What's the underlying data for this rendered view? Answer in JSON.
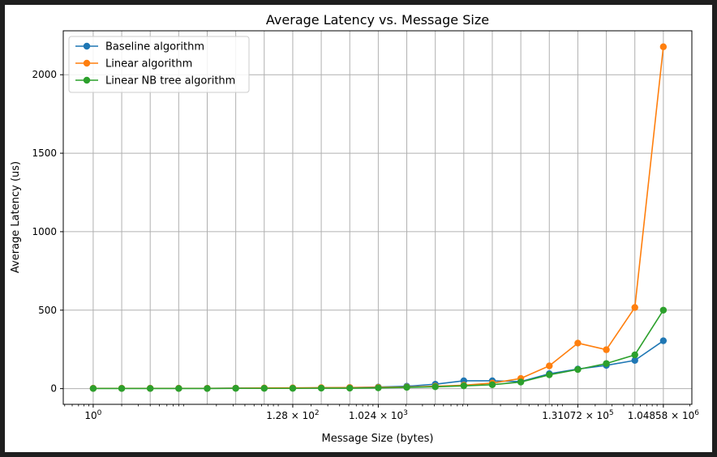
{
  "chart_data": {
    "type": "line",
    "title": "Average Latency vs. Message Size",
    "xlabel": "Message Size (bytes)",
    "ylabel": "Average Latency (us)",
    "x_scale": "log2",
    "x": [
      1,
      2,
      4,
      8,
      16,
      32,
      64,
      128,
      256,
      512,
      1024,
      2048,
      4096,
      8192,
      16384,
      32768,
      65536,
      131072,
      262144,
      524288,
      1048576
    ],
    "x_ticks": [
      {
        "value": 1,
        "label": "10^0"
      },
      {
        "value": 128,
        "label": "1.28 × 10^2"
      },
      {
        "value": 1024,
        "label": "1.024 × 10^3"
      },
      {
        "value": 131072,
        "label": "1.31072 × 10^5"
      },
      {
        "value": 1048576,
        "label": "1.04858 × 10^6"
      }
    ],
    "y_ticks": [
      0,
      500,
      1000,
      1500,
      2000
    ],
    "ylim": [
      -100,
      2280
    ],
    "grid": true,
    "legend_position": "top-left",
    "series": [
      {
        "name": "Baseline algorithm",
        "color": "#1f77b4",
        "values": [
          2,
          2,
          2,
          2,
          2,
          3,
          3,
          4,
          5,
          7,
          10,
          15,
          28,
          50,
          50,
          45,
          95,
          125,
          148,
          180,
          305
        ]
      },
      {
        "name": "Linear algorithm",
        "color": "#ff7f0e",
        "values": [
          2,
          2,
          2,
          2,
          2,
          3,
          4,
          5,
          6,
          7,
          8,
          10,
          15,
          22,
          35,
          65,
          145,
          290,
          248,
          517,
          2178
        ]
      },
      {
        "name": "Linear NB tree algorithm",
        "color": "#2ca02c",
        "values": [
          1,
          1,
          1,
          1,
          1,
          2,
          2,
          2,
          3,
          3,
          5,
          8,
          12,
          18,
          25,
          42,
          88,
          122,
          160,
          215,
          500
        ]
      }
    ]
  }
}
